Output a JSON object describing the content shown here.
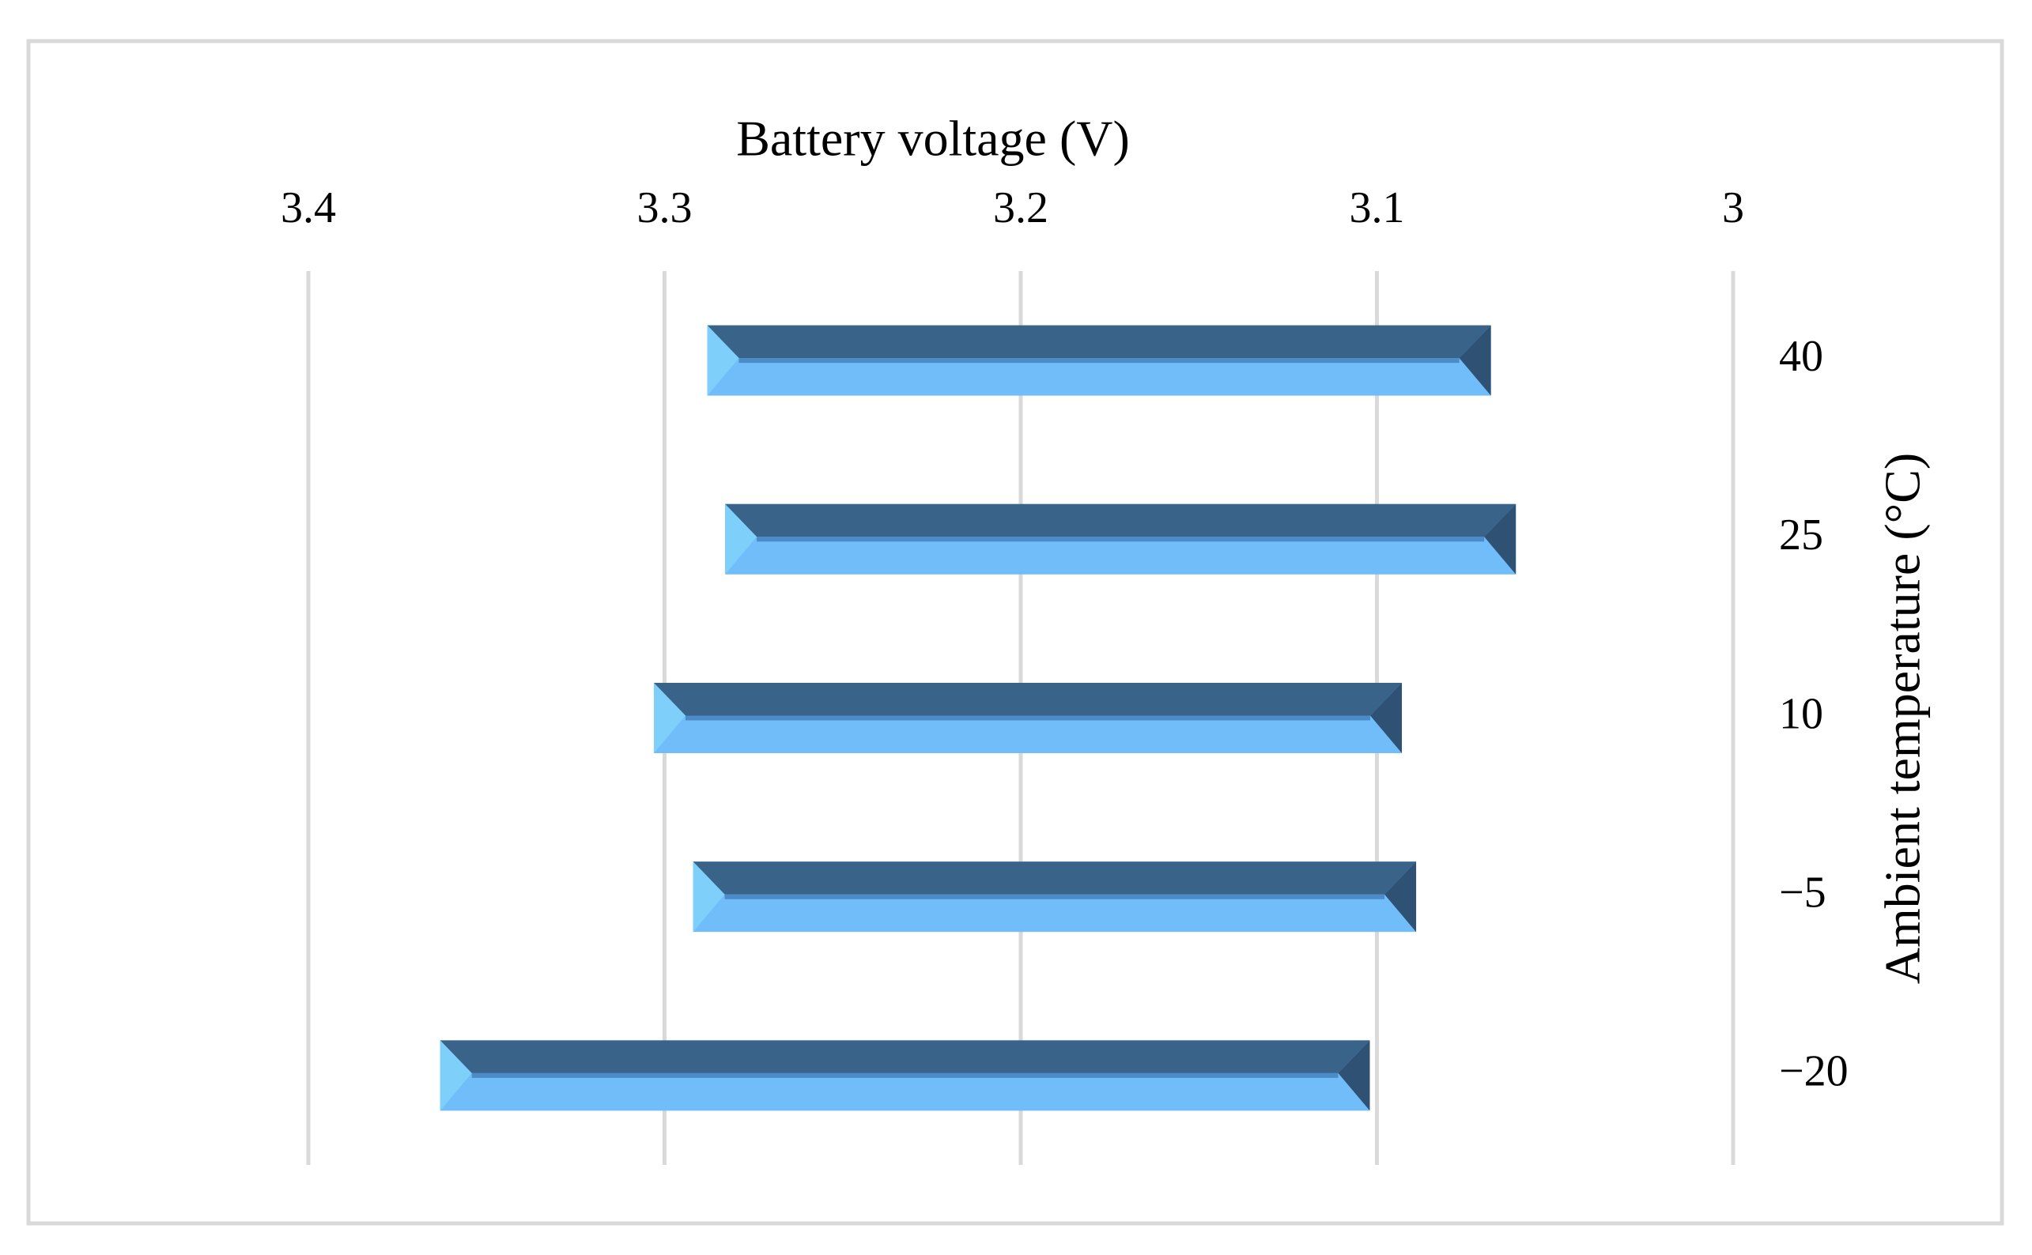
{
  "chart_data": {
    "type": "floating-bar",
    "x_label": "Battery voltage (V)",
    "y_label": "Ambient temperature (°C)",
    "categories": [
      "40",
      "25",
      "10",
      "−5",
      "−20"
    ],
    "values": [
      [
        3.288,
        3.068
      ],
      [
        3.283,
        3.061
      ],
      [
        3.303,
        3.093
      ],
      [
        3.292,
        3.089
      ],
      [
        3.363,
        3.102
      ]
    ],
    "color": "#70bdfa",
    "xlim": [
      3.4,
      3.0
    ],
    "xticks": [
      3.4,
      3.3,
      3.2,
      3.1,
      3
    ],
    "x_reversed": true,
    "grid": true,
    "x_axis_position": "top",
    "y_axis_position": "right"
  }
}
